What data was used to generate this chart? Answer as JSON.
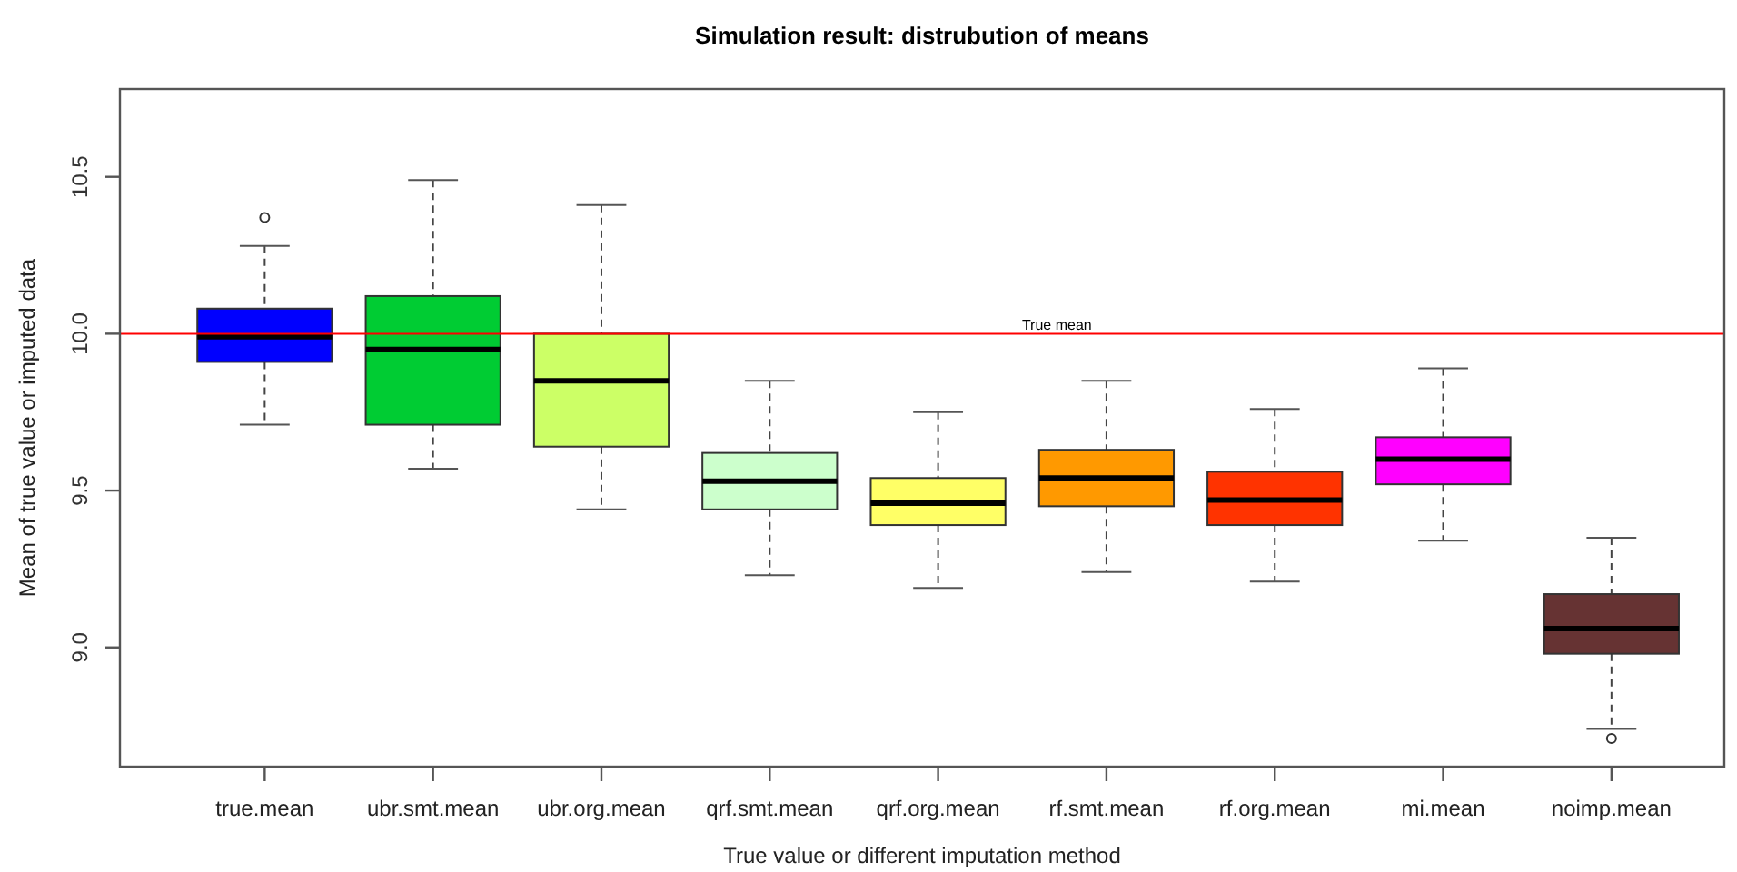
{
  "chart_data": {
    "type": "box",
    "title": "Simulation result: distrubution of means",
    "xlabel": "True value or different imputation method",
    "ylabel": "Mean of true value or imputed data",
    "categories": [
      "true.mean",
      "ubr.smt.mean",
      "ubr.org.mean",
      "qrf.smt.mean",
      "qrf.org.mean",
      "rf.smt.mean",
      "rf.org.mean",
      "mi.mean",
      "noimp.mean"
    ],
    "boxes": [
      {
        "low": 9.71,
        "q1": 9.91,
        "median": 9.99,
        "q3": 10.08,
        "high": 10.28,
        "outliers": [
          10.37
        ]
      },
      {
        "low": 9.57,
        "q1": 9.71,
        "median": 9.95,
        "q3": 10.12,
        "high": 10.49
      },
      {
        "low": 9.44,
        "q1": 9.64,
        "median": 9.85,
        "q3": 10.0,
        "high": 10.41
      },
      {
        "low": 9.23,
        "q1": 9.44,
        "median": 9.53,
        "q3": 9.62,
        "high": 9.85
      },
      {
        "low": 9.19,
        "q1": 9.39,
        "median": 9.46,
        "q3": 9.54,
        "high": 9.75
      },
      {
        "low": 9.24,
        "q1": 9.45,
        "median": 9.54,
        "q3": 9.63,
        "high": 9.85
      },
      {
        "low": 9.21,
        "q1": 9.39,
        "median": 9.47,
        "q3": 9.56,
        "high": 9.76
      },
      {
        "low": 9.34,
        "q1": 9.52,
        "median": 9.6,
        "q3": 9.67,
        "high": 9.89
      },
      {
        "low": 8.74,
        "q1": 8.98,
        "median": 9.06,
        "q3": 9.17,
        "high": 9.35,
        "outliers": [
          8.71
        ]
      }
    ],
    "colors": [
      "#0000ff",
      "#00cc33",
      "#ccff66",
      "#ccffcc",
      "#ffff66",
      "#ff9900",
      "#ff3300",
      "#ff00ff",
      "#663333"
    ],
    "ylim": [
      8.62,
      10.78
    ],
    "yticks": [
      {
        "value": 9,
        "label": "9.0"
      },
      9.5,
      {
        "value": 10,
        "label": "10.0"
      },
      10.5
    ],
    "ref_lines": [
      {
        "axis": "y",
        "value": 10,
        "label": "True mean",
        "color": "#ff0000"
      }
    ]
  }
}
